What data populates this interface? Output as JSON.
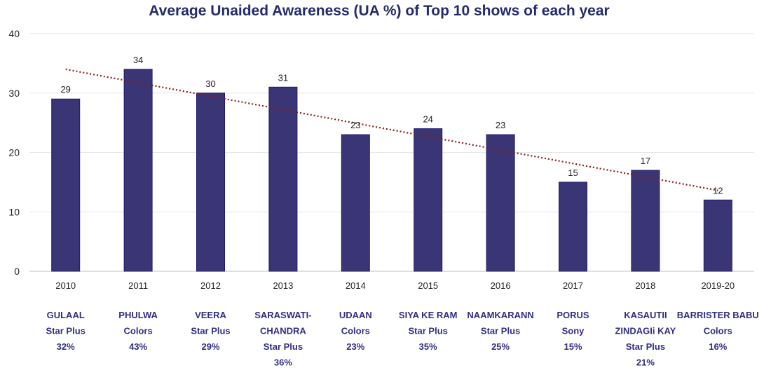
{
  "chart_data": {
    "type": "bar",
    "title": "Average Unaided Awareness (UA %) of Top 10 shows of each year",
    "xlabel": "",
    "ylabel": "",
    "ylim": [
      0,
      40
    ],
    "yticks": [
      0,
      10,
      20,
      30,
      40
    ],
    "grid": true,
    "legend": "none",
    "categories": [
      "2010",
      "2011",
      "2012",
      "2013",
      "2014",
      "2015",
      "2016",
      "2017",
      "2018",
      "2019-20"
    ],
    "values": [
      29,
      34,
      30,
      31,
      23,
      24,
      23,
      15,
      17,
      12
    ],
    "trendline": {
      "type": "linear",
      "style": "dotted",
      "start": 34,
      "end": 13.6
    },
    "colors": {
      "bar": "#3a3575",
      "bar_edge": "#1f1a6b",
      "trend": "#8b1a1a",
      "grid": "#e6e6e6",
      "show_text": "#2f2f82"
    },
    "shows": [
      [
        "GULAAL",
        "Star Plus",
        "32%"
      ],
      [
        "PHULWA",
        "Colors",
        "43%"
      ],
      [
        "VEERA",
        "Star Plus",
        "29%"
      ],
      [
        "SARASWATI-",
        "CHANDRA",
        "Star Plus",
        "36%"
      ],
      [
        "UDAAN",
        "Colors",
        "23%"
      ],
      [
        "SIYA KE RAM",
        "Star Plus",
        "35%"
      ],
      [
        "NAAMKARANN",
        "Star Plus",
        "25%"
      ],
      [
        "PORUS",
        "Sony",
        "15%"
      ],
      [
        "KASAUTII",
        "ZINDAGIi KAY",
        "Star Plus",
        "21%"
      ],
      [
        "BARRISTER BABU",
        "Colors",
        "16%"
      ]
    ]
  }
}
